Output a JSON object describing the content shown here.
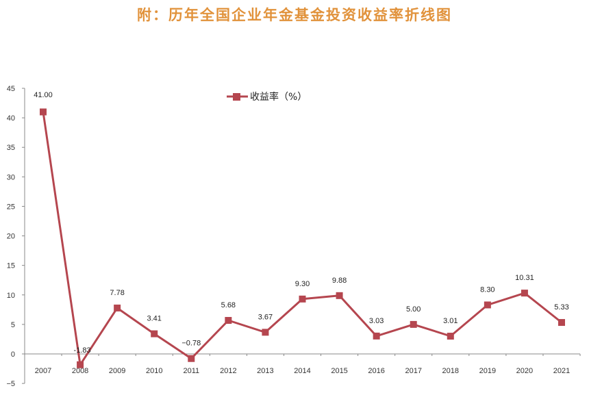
{
  "title": "附：历年全国企业年金基金投资收益率折线图",
  "chart_data": {
    "type": "line",
    "title": "附：历年全国企业年金基金投资收益率折线图",
    "xlabel": "",
    "ylabel": "",
    "categories": [
      "2007",
      "2008",
      "2009",
      "2010",
      "2011",
      "2012",
      "2013",
      "2014",
      "2015",
      "2016",
      "2017",
      "2018",
      "2019",
      "2020",
      "2021"
    ],
    "series": [
      {
        "name": "收益率（%）",
        "color": "#b5464f",
        "values": [
          41.0,
          -1.83,
          7.78,
          3.41,
          -0.78,
          5.68,
          3.67,
          9.3,
          9.88,
          3.03,
          5.0,
          3.01,
          8.3,
          10.31,
          5.33
        ],
        "labels": [
          "41.00",
          "-1.83",
          "7.78",
          "3.41",
          "−0.78",
          "5.68",
          "3.67",
          "9.30",
          "9.88",
          "3.03",
          "5.00",
          "3.01",
          "8.30",
          "10.31",
          "5.33"
        ]
      }
    ],
    "yticks": [
      45,
      40,
      35,
      30,
      25,
      20,
      15,
      10,
      5,
      0,
      -5
    ],
    "ylim": [
      -5,
      45
    ],
    "grid": false,
    "legend_position": "top-center"
  },
  "legend": {
    "label": "收益率（%）"
  },
  "colors": {
    "title": "#e1923b",
    "line": "#b5464f",
    "axis": "#888888"
  }
}
